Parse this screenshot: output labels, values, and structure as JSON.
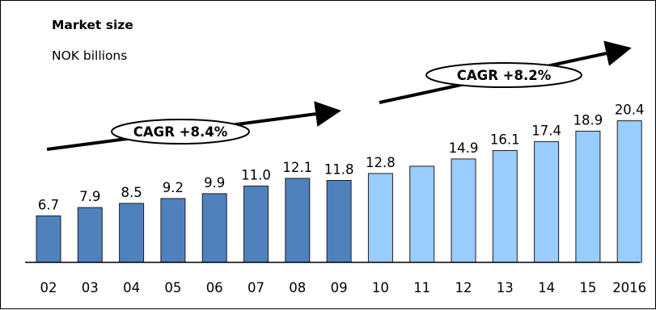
{
  "chart_data": {
    "type": "bar",
    "title": "Market size",
    "subtitle": "NOK billions",
    "categories": [
      "02",
      "03",
      "04",
      "05",
      "06",
      "07",
      "08",
      "09",
      "10",
      "11",
      "12",
      "13",
      "14",
      "15",
      "2016"
    ],
    "values": [
      6.7,
      7.9,
      8.5,
      9.2,
      9.9,
      11.0,
      12.1,
      11.8,
      12.8,
      null,
      14.9,
      16.1,
      17.4,
      18.9,
      20.4
    ],
    "value_labels": [
      "6.7",
      "7.9",
      "8.5",
      "9.2",
      "9.9",
      "11.0",
      "12.1",
      "11.8",
      "12.8",
      "",
      "14.9",
      "16.1",
      "17.4",
      "18.9",
      "20.4"
    ],
    "series_split": {
      "historical": [
        "02",
        "03",
        "04",
        "05",
        "06",
        "07",
        "08",
        "09"
      ],
      "forecast": [
        "10",
        "11",
        "12",
        "13",
        "14",
        "15",
        "2016"
      ]
    },
    "colors": {
      "historical": "#4f81bd",
      "forecast": "#99ccff",
      "border": "#1f1f1f"
    },
    "annotations": [
      {
        "text": "CAGR +8.4%",
        "span": [
          "02",
          "09"
        ]
      },
      {
        "text": "CAGR +8.2%",
        "span": [
          "10",
          "2016"
        ]
      }
    ],
    "ylim": [
      0,
      21
    ],
    "grid": false,
    "legend": "none"
  }
}
